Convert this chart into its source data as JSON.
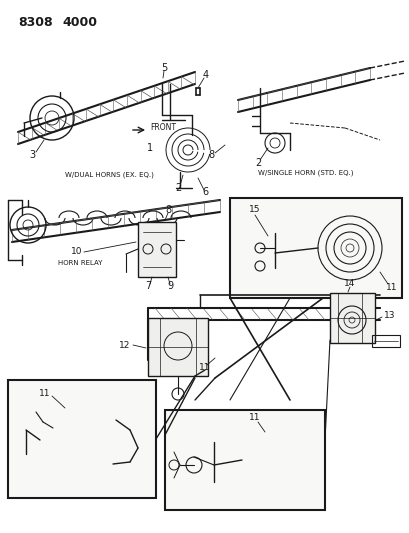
{
  "title": "8308  4000",
  "bg": "#f5f5f0",
  "lc": "#1a1a1a",
  "tc": "#1a1a1a",
  "fw": 4.1,
  "fh": 5.33,
  "dpi": 100,
  "header": "8308  4000",
  "front_label": "FRONT",
  "dual_label": "W/DUAL HORNS (EX. EQ.)",
  "single_label": "W/SINGLE HORN (STD. EQ.)",
  "relay_label": "HORN RELAY"
}
